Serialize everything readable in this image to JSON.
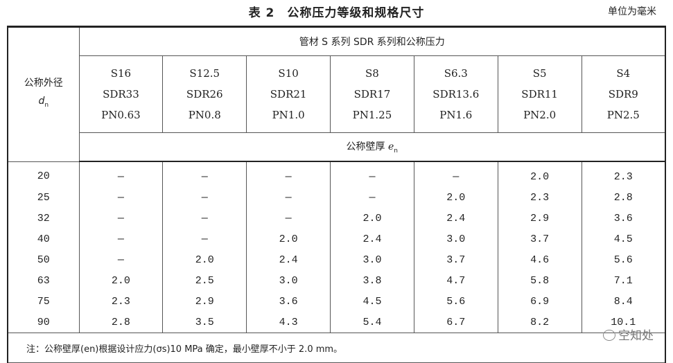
{
  "title": "表 2　公称压力等级和规格尺寸",
  "unit": "单位为毫米",
  "header": {
    "first_col": "公称外径",
    "first_col_symbol": "dn",
    "group": "管材 S 系列 SDR 系列和公称压力",
    "sub": "公称壁厚 en",
    "series": [
      {
        "s": "S16",
        "sdr": "SDR33",
        "pn": "PN0.63"
      },
      {
        "s": "S12.5",
        "sdr": "SDR26",
        "pn": "PN0.8"
      },
      {
        "s": "S10",
        "sdr": "SDR21",
        "pn": "PN1.0"
      },
      {
        "s": "S8",
        "sdr": "SDR17",
        "pn": "PN1.25"
      },
      {
        "s": "S6.3",
        "sdr": "SDR13.6",
        "pn": "PN1.6"
      },
      {
        "s": "S5",
        "sdr": "SDR11",
        "pn": "PN2.0"
      },
      {
        "s": "S4",
        "sdr": "SDR9",
        "pn": "PN2.5"
      }
    ]
  },
  "rows": [
    [
      "20",
      "—",
      "—",
      "—",
      "—",
      "—",
      "2.0",
      "2.3"
    ],
    [
      "25",
      "—",
      "—",
      "—",
      "—",
      "2.0",
      "2.3",
      "2.8"
    ],
    [
      "32",
      "—",
      "—",
      "—",
      "2.0",
      "2.4",
      "2.9",
      "3.6"
    ],
    [
      "40",
      "—",
      "—",
      "2.0",
      "2.4",
      "3.0",
      "3.7",
      "4.5"
    ],
    [
      "50",
      "—",
      "2.0",
      "2.4",
      "3.0",
      "3.7",
      "4.6",
      "5.6"
    ],
    [
      "63",
      "2.0",
      "2.5",
      "3.0",
      "3.8",
      "4.7",
      "5.8",
      "7.1"
    ],
    [
      "75",
      "2.3",
      "2.9",
      "3.6",
      "4.5",
      "5.6",
      "6.9",
      "8.4"
    ],
    [
      "90",
      "2.8",
      "3.5",
      "4.3",
      "5.4",
      "6.7",
      "8.2",
      "10.1"
    ]
  ],
  "note": "注：公称壁厚(en)根据设计应力(σs)10 MPa 确定，最小壁厚不小于 2.0 mm。",
  "watermark": "空知处"
}
